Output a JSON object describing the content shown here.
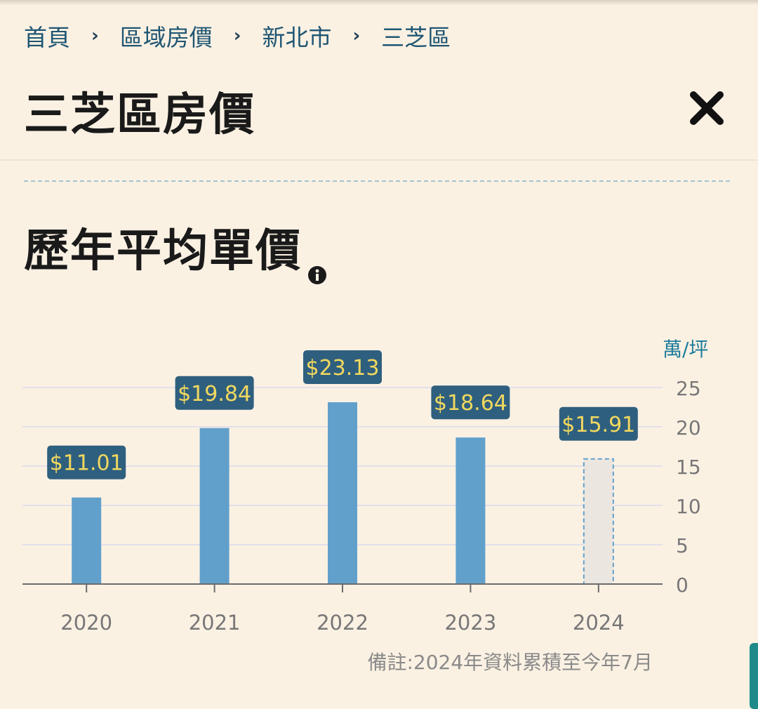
{
  "breadcrumb": [
    {
      "label": "首頁"
    },
    {
      "label": "區域房價"
    },
    {
      "label": "新北市"
    },
    {
      "label": "三芝區"
    }
  ],
  "breadcrumb_separator": "›",
  "page_title": "三芝區房價",
  "close_icon": "close-icon",
  "section_title": "歷年平均單價",
  "info_icon": "info-icon",
  "footnote": "備註:2024年資料累積至今年7月",
  "colors": {
    "bar": "#62a0cc",
    "bar_partial_fill": "#ebe6df",
    "bar_partial_border": "#62a0cc",
    "label_bg": "#2f5f7e",
    "label_text": "#f2d85f",
    "unit_text": "#1f7d9c",
    "grid": "#e2e0ea",
    "axis": "#6b6b6b",
    "tick_text": "#777777"
  },
  "chart_data": {
    "type": "bar",
    "categories": [
      "2020",
      "2021",
      "2022",
      "2023",
      "2024"
    ],
    "values": [
      11.01,
      19.84,
      23.13,
      18.64,
      15.91
    ],
    "value_labels": [
      "$11.01",
      "$19.84",
      "$23.13",
      "$18.64",
      "$15.91"
    ],
    "partial_categories": [
      "2024"
    ],
    "y_unit": "萬/坪",
    "y_axis_position": "right",
    "yticks": [
      0,
      5,
      10,
      15,
      20,
      25
    ],
    "ylim": [
      0,
      25
    ],
    "grid": true,
    "legend": "none"
  }
}
